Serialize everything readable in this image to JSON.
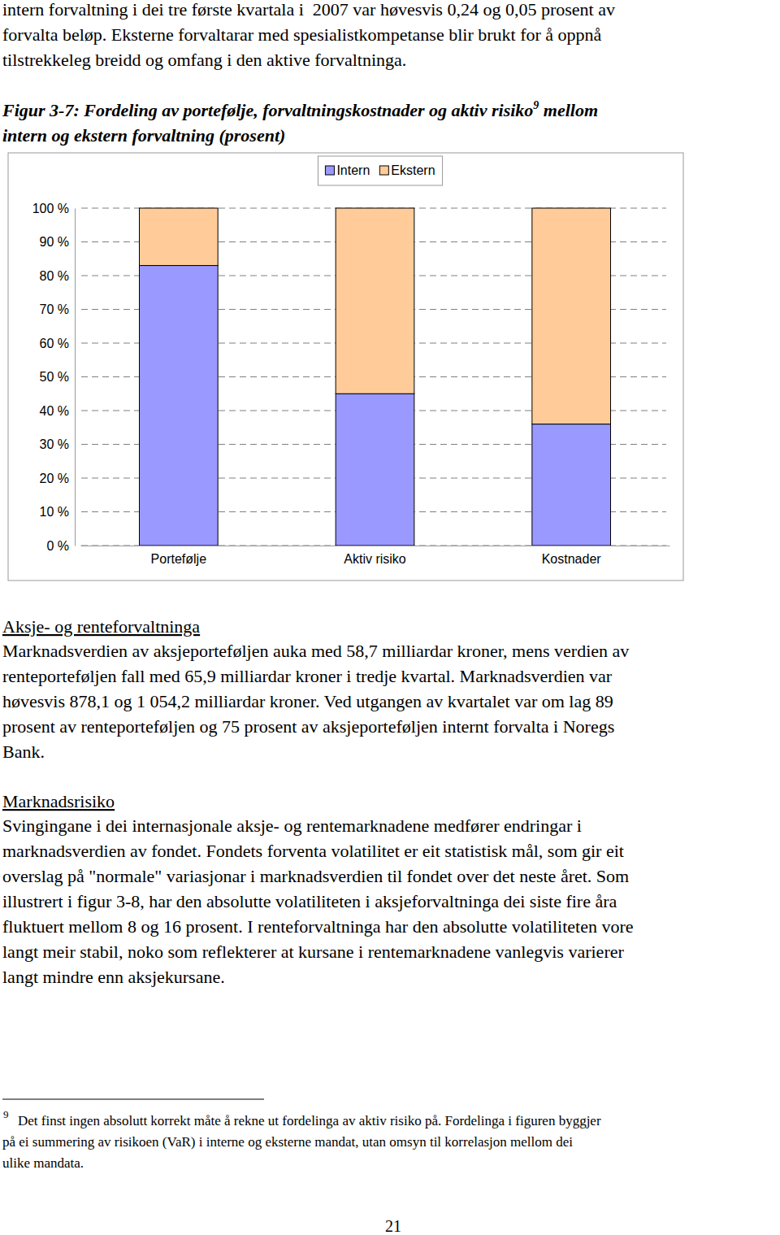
{
  "document": {
    "intro": {
      "lines": [
        "intern forvaltning i dei tre første kvartala i  2007 var høvesvis 0,24 og 0,05 prosent av",
        "forvalta beløp. Eksterne forvaltarar med spesialistkompetanse blir brukt for å oppnå",
        "tilstrekkeleg breidd og omfang i den aktive forvaltninga."
      ]
    },
    "figure_title": {
      "text": "Figur 3-7: Fordeling av portefølje, forvaltningskostnader og aktiv risiko",
      "note_ref": "9",
      "text_cont": " mellom",
      "line2": "intern og ekstern forvaltning (prosent)"
    },
    "sections": [
      {
        "heading": "Aksje- og renteforvaltninga",
        "lines": [
          "Marknadsverdien av aksjeporteføljen auka med 58,7 milliardar kroner, mens verdien av",
          "renteporteføljen fall med 65,9 milliardar kroner i tredje kvartal. Marknadsverdien var",
          "høvesvis 878,1 og 1 054,2 milliardar kroner. Ved utgangen av kvartalet var om lag 89",
          "prosent av renteporteføljen og 75 prosent av aksjeporteføljen internt forvalta i Noregs",
          "Bank."
        ]
      },
      {
        "heading": "Marknadsrisiko",
        "lines": [
          "Svingingane i dei internasjonale aksje- og rentemarknadene medfører endringar i",
          "marknadsverdien av fondet. Fondets forventa volatilitet er eit statistisk mål, som gir eit",
          "overslag på \"normale\" variasjonar i marknadsverdien til fondet over det neste året. Som",
          "illustrert i figur 3-8, har den absolutte volatiliteten i aksjeforvaltninga dei siste fire åra",
          "fluktuert mellom 8 og 16 prosent. I renteforvaltninga har den absolutte volatiliteten vore",
          "langt meir stabil, noko som reflekterer at kursane i rentemarknadene vanlegvis varierer",
          "langt mindre enn aksjekursane."
        ]
      }
    ],
    "footnote": {
      "number": "9",
      "lines": [
        "Det finst ingen absolutt korrekt måte å rekne ut fordelinga av aktiv risiko på. Fordelinga i figuren byggjer",
        "på ei summering av risikoen (VaR) i interne og eksterne mandat, utan omsyn til korrelasjon mellom dei",
        "ulike mandata."
      ]
    },
    "page_number": "21"
  },
  "chart_data": {
    "type": "bar",
    "stacked": true,
    "grid": true,
    "legend": "top",
    "categories": [
      "Portefølje",
      "Aktiv risiko",
      "Kostnader"
    ],
    "series": [
      {
        "name": "Intern",
        "color": "#9999ff",
        "values": [
          83,
          45,
          36
        ]
      },
      {
        "name": "Ekstern",
        "color": "#ffcc99",
        "values": [
          17,
          55,
          64
        ]
      }
    ],
    "ylim": [
      0,
      100
    ],
    "yticks": [
      {
        "value": 0,
        "label": "0 %"
      },
      {
        "value": 10,
        "label": "10 %"
      },
      {
        "value": 20,
        "label": "20 %"
      },
      {
        "value": 30,
        "label": "30 %"
      },
      {
        "value": 40,
        "label": "40 %"
      },
      {
        "value": 50,
        "label": "50 %"
      },
      {
        "value": 60,
        "label": "60 %"
      },
      {
        "value": 70,
        "label": "70 %"
      },
      {
        "value": 80,
        "label": "80 %"
      },
      {
        "value": 90,
        "label": "90 %"
      },
      {
        "value": 100,
        "label": "100 %"
      }
    ]
  }
}
